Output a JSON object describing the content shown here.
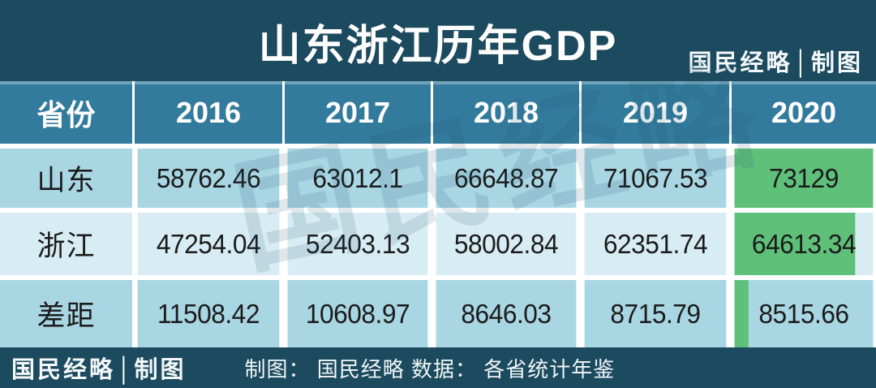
{
  "title": "山东浙江历年GDP",
  "brand": {
    "top_right": "国民经略│制图",
    "footer_left": "国民经略│制图"
  },
  "footer": {
    "credit": "制图： 国民经略 数据： 各省统计年鉴"
  },
  "watermark": "国民经略",
  "colors": {
    "background_dark": "#1c4a5e",
    "header_blue": "#337b9d",
    "row_blue": "#a9d6e3",
    "row_blue_light": "#d8edf3",
    "bar_green": "#5fc07a",
    "text_dark": "#1b1b1b",
    "text_white": "#ffffff"
  },
  "chart_data": {
    "type": "table",
    "title": "山东浙江历年GDP",
    "columns": [
      "省份",
      "2016",
      "2017",
      "2018",
      "2019",
      "2020"
    ],
    "rows": [
      {
        "label": "山东",
        "values": [
          "58762.46",
          "63012.1",
          "66648.87",
          "71067.53",
          "73129"
        ],
        "bar_2020_width": "100%"
      },
      {
        "label": "浙江",
        "values": [
          "47254.04",
          "52403.13",
          "58002.84",
          "62351.74",
          "64613.34"
        ],
        "bar_2020_width": "87%"
      },
      {
        "label": "差距",
        "values": [
          "11508.42",
          "10608.97",
          "8646.03",
          "8715.79",
          "8515.66"
        ],
        "bar_2020_width": "10%"
      }
    ]
  }
}
